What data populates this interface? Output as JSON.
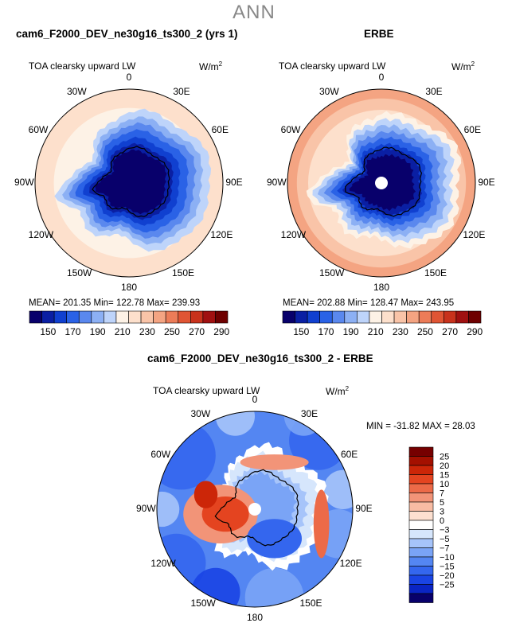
{
  "page": {
    "season": "ANN"
  },
  "colors": {
    "abs_scale": [
      "#08006b",
      "#0a1fa3",
      "#1040d0",
      "#2a62e6",
      "#5a88ee",
      "#8cb0f4",
      "#bed4fa",
      "#fdf2e6",
      "#fde0cc",
      "#f9c4a8",
      "#f4a482",
      "#ec7c58",
      "#e05534",
      "#c8321c",
      "#a01010",
      "#6e0000"
    ],
    "diff_scale": [
      "#08006b",
      "#0a24c4",
      "#1a44e4",
      "#3466ee",
      "#5486f2",
      "#7aa4f6",
      "#a6c4fa",
      "#d6e6fc",
      "#ffffff",
      "#fde0d0",
      "#f8bca4",
      "#f29478",
      "#ec6a48",
      "#e44420",
      "#cc2608",
      "#a41000",
      "#760000"
    ],
    "coast": "#000000",
    "pole": "#ffffff"
  },
  "panels": [
    {
      "title": "cam6_F2000_DEV_ne30g16_ts300_2 (yrs 1)",
      "variable": "TOA clearsky upward LW",
      "units": "W/m",
      "units_exp": "2",
      "stats": "MEAN= 201.35   Min= 122.78   Max= 239.93",
      "lon_labels": [
        "0",
        "30E",
        "60E",
        "90E",
        "120E",
        "150E",
        "180",
        "150W",
        "120W",
        "90W",
        "60W",
        "30W"
      ]
    },
    {
      "title": "ERBE",
      "variable": "TOA clearsky upward LW",
      "units": "W/m",
      "units_exp": "2",
      "stats": "MEAN= 202.88   Min= 128.47   Max= 243.95",
      "lon_labels": [
        "0",
        "30E",
        "60E",
        "90E",
        "120E",
        "150E",
        "180",
        "150W",
        "120W",
        "90W",
        "60W",
        "30W"
      ]
    },
    {
      "title": "cam6_F2000_DEV_ne30g16_ts300_2 - ERBE",
      "variable": "TOA clearsky upward LW",
      "units": "W/m",
      "units_exp": "2",
      "stats": "MIN = -31.82  MAX =  28.03",
      "lon_labels": [
        "0",
        "30E",
        "60E",
        "90E",
        "120E",
        "150E",
        "180",
        "150W",
        "120W",
        "90W",
        "60W",
        "30W"
      ]
    }
  ],
  "chart_data": [
    {
      "type": "heatmap",
      "projection": "south polar stereographic",
      "title": "cam6_F2000_DEV_ne30g16_ts300_2 (yrs 1)",
      "variable": "TOA clearsky upward LW",
      "units": "W/m2",
      "colorbar_ticks": [
        150,
        170,
        190,
        210,
        230,
        250,
        270,
        290
      ],
      "levels": [
        140,
        150,
        160,
        170,
        180,
        190,
        200,
        210,
        220,
        230,
        240,
        250,
        260,
        270,
        280,
        290
      ],
      "mean": 201.35,
      "min": 122.78,
      "max": 239.93
    },
    {
      "type": "heatmap",
      "projection": "south polar stereographic",
      "title": "ERBE",
      "variable": "TOA clearsky upward LW",
      "units": "W/m2",
      "colorbar_ticks": [
        150,
        170,
        190,
        210,
        230,
        250,
        270,
        290
      ],
      "levels": [
        140,
        150,
        160,
        170,
        180,
        190,
        200,
        210,
        220,
        230,
        240,
        250,
        260,
        270,
        280,
        290
      ],
      "mean": 202.88,
      "min": 128.47,
      "max": 243.95
    },
    {
      "type": "heatmap",
      "projection": "south polar stereographic",
      "title": "cam6_F2000_DEV_ne30g16_ts300_2 - ERBE",
      "variable": "TOA clearsky upward LW",
      "units": "W/m2",
      "colorbar_ticks": [
        25,
        20,
        15,
        10,
        7,
        5,
        3,
        0,
        -3,
        -5,
        -7,
        -10,
        -15,
        -20,
        -25
      ],
      "min": -31.82,
      "max": 28.03
    }
  ]
}
